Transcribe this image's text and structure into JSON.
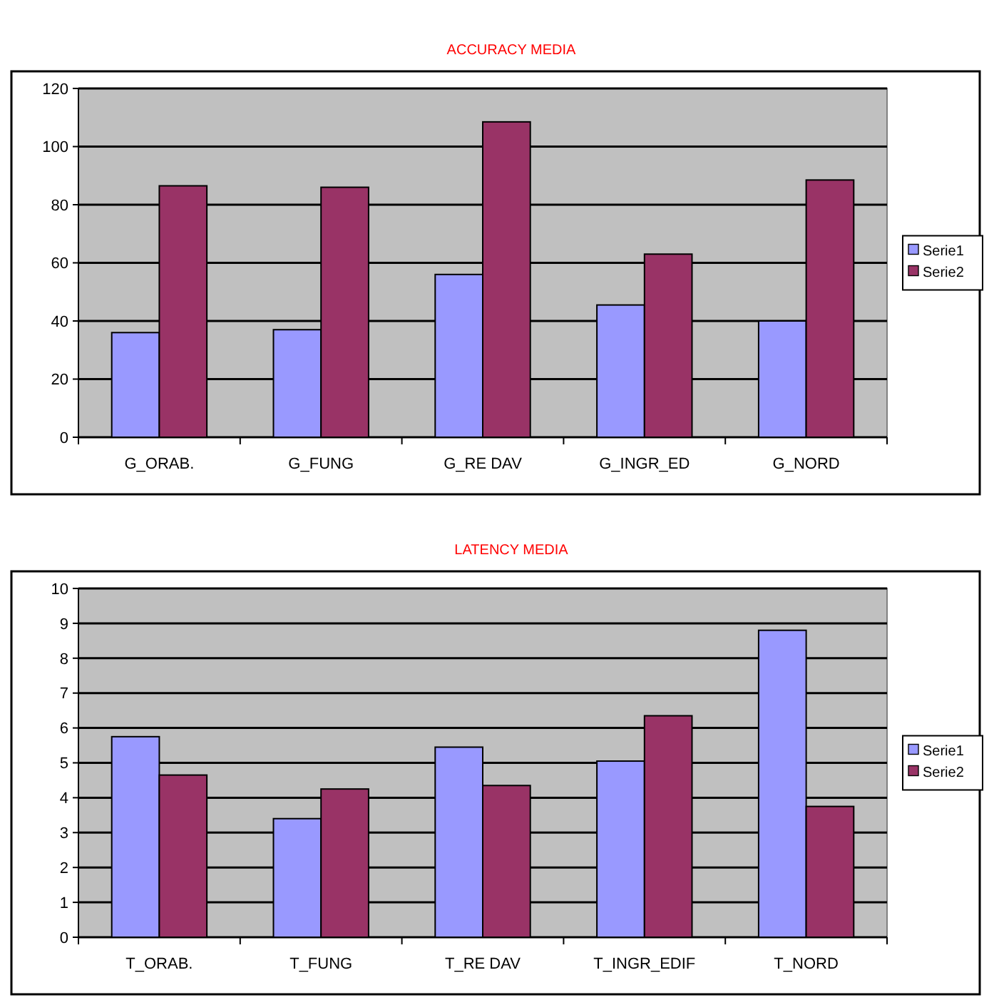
{
  "chart_data": [
    {
      "type": "bar",
      "title": "ACCURACY MEDIA",
      "categories": [
        "G_ORAB.",
        "G_FUNG",
        "G_RE DAV",
        "G_INGR_ED",
        "G_NORD"
      ],
      "series": [
        {
          "name": "Serie1",
          "color": "#9999ff",
          "values": [
            36,
            37,
            56,
            45.5,
            40
          ]
        },
        {
          "name": "Serie2",
          "color": "#993366",
          "values": [
            86.5,
            86,
            108.5,
            63,
            88.5
          ]
        }
      ],
      "ylim": [
        0,
        120
      ],
      "yticks": [
        0,
        20,
        40,
        60,
        80,
        100,
        120
      ],
      "grid": "y",
      "legend": "right"
    },
    {
      "type": "bar",
      "title": "LATENCY MEDIA",
      "categories": [
        "T_ORAB.",
        "T_FUNG",
        "T_RE DAV",
        "T_INGR_EDIF",
        "T_NORD"
      ],
      "series": [
        {
          "name": "Serie1",
          "color": "#9999ff",
          "values": [
            5.75,
            3.4,
            5.45,
            5.05,
            8.8
          ]
        },
        {
          "name": "Serie2",
          "color": "#993366",
          "values": [
            4.65,
            4.25,
            4.35,
            6.35,
            3.75
          ]
        }
      ],
      "ylim": [
        0,
        10
      ],
      "yticks": [
        0,
        1,
        2,
        3,
        4,
        5,
        6,
        7,
        8,
        9,
        10
      ],
      "grid": "y",
      "legend": "right"
    }
  ]
}
